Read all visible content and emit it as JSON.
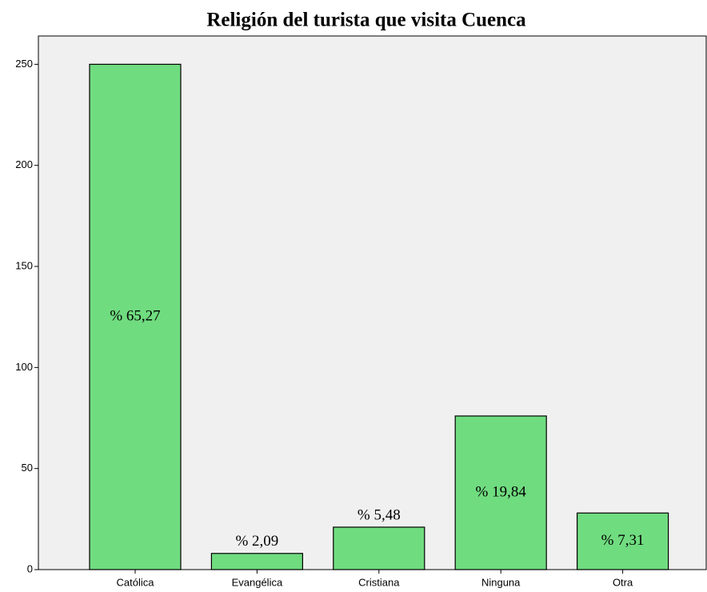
{
  "chart_data": {
    "type": "bar",
    "title": "Religión del turista que visita Cuenca",
    "categories": [
      "Católica",
      "Evangélica",
      "Cristiana",
      "Ninguna",
      "Otra"
    ],
    "values": [
      250,
      8,
      21,
      76,
      28
    ],
    "bar_labels": [
      "% 65,27",
      "% 2,09",
      "% 5,48",
      "% 19,84",
      "% 7,31"
    ],
    "color": "#70dc80",
    "ylim": [
      0,
      264
    ],
    "yticks": [
      0,
      50,
      100,
      150,
      200,
      250
    ],
    "grid": false
  }
}
